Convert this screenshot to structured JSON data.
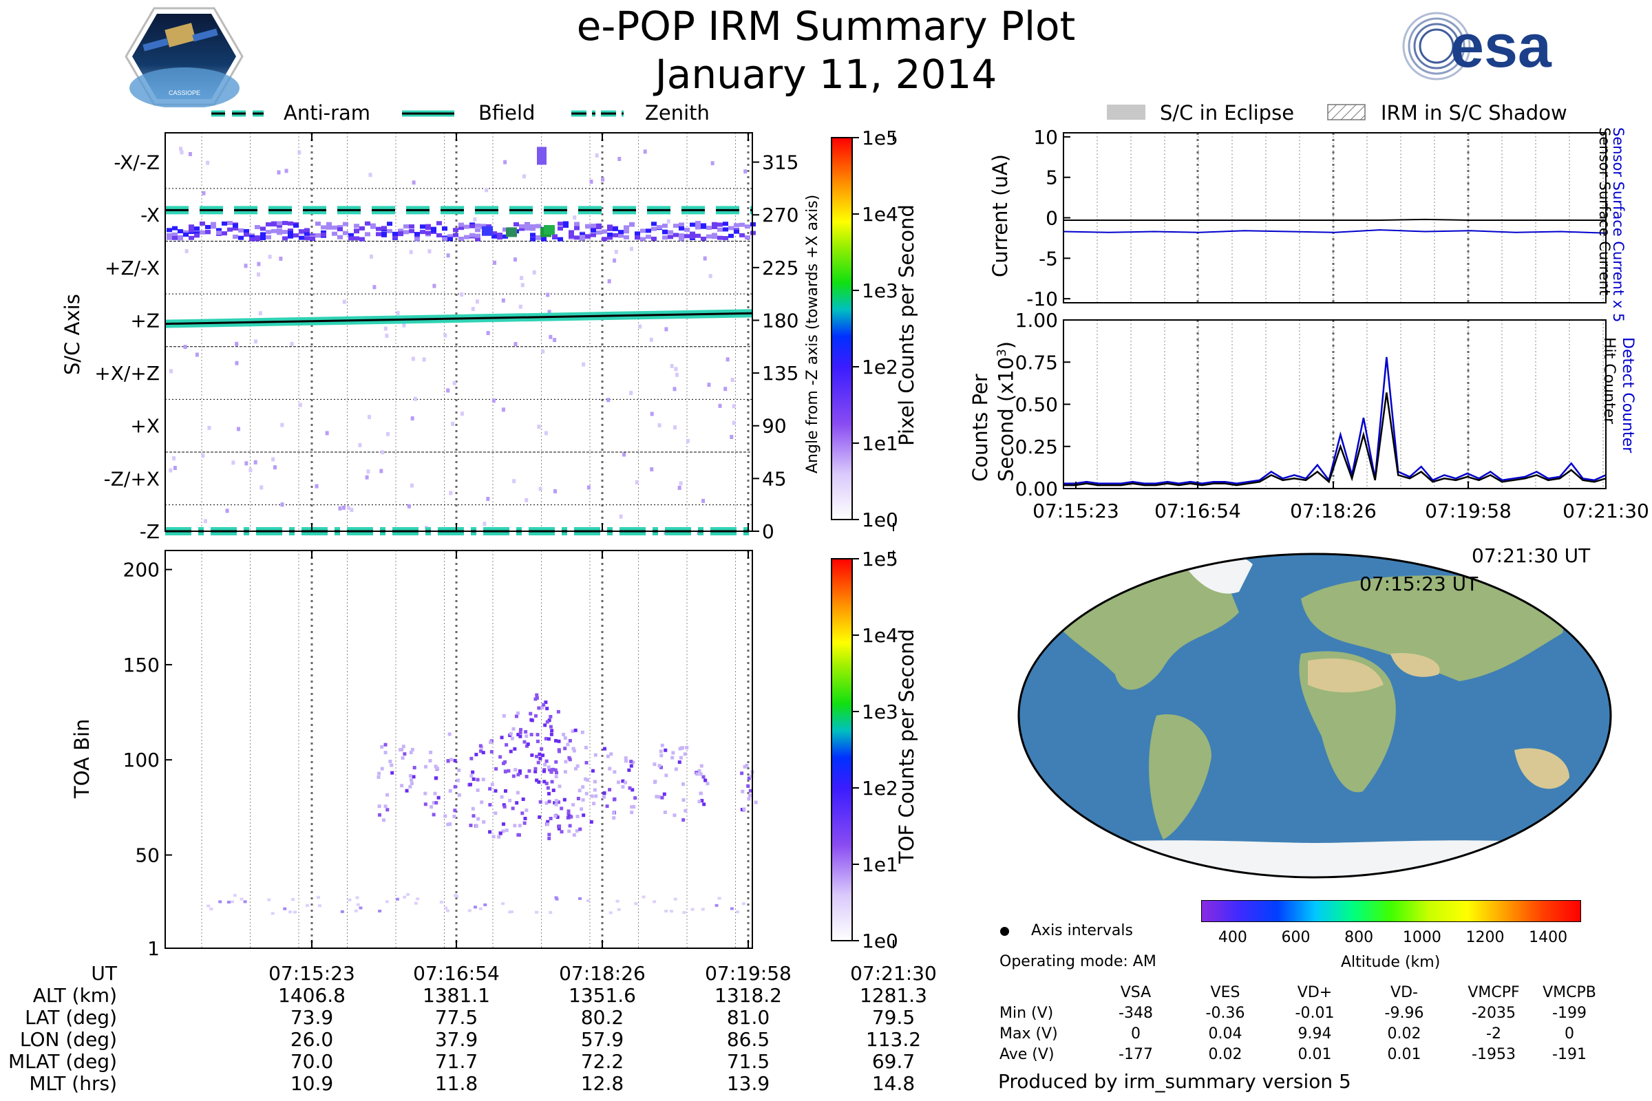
{
  "header": {
    "title": "e-POP IRM Summary Plot",
    "subtitle": "January 11, 2014",
    "badge_text": "CASSIOPE",
    "esa_logo_text": "esa"
  },
  "legend_left": {
    "items": [
      {
        "label": "Anti-ram",
        "style": "dashed"
      },
      {
        "label": "Bfield",
        "style": "solid"
      },
      {
        "label": "Zenith",
        "style": "dashdot"
      }
    ]
  },
  "legend_right": {
    "items": [
      {
        "label": "S/C in Eclipse",
        "style": "gray-fill"
      },
      {
        "label": "IRM in S/C Shadow",
        "style": "hatch"
      }
    ]
  },
  "colors": {
    "accent_teal": "#2fd3b5",
    "sensor_blue": "#0000cc",
    "track_orange": "#f08a1c",
    "ocean": "#3f7fb5"
  },
  "chart_data": [
    {
      "type": "heatmap",
      "name_ref": "sc-axis-panel",
      "ylabel": "S/C Axis",
      "ylabel_right": "Angle from -Z axis (towards +X axis)",
      "y_axis_labels": [
        "-X/-Z",
        "-X",
        "+Z/-X",
        "+Z",
        "+X/+Z",
        "+X",
        "-Z/+X",
        "-Z"
      ],
      "y_right_ticks": [
        "315",
        "270",
        "225",
        "180",
        "135",
        "90",
        "45",
        "0"
      ],
      "ylim": [
        0,
        340
      ],
      "colorbar": {
        "label": "Pixel Counts per Second",
        "ticks": [
          "1e5",
          "1e4",
          "1e3",
          "1e2",
          "1e1",
          "1e0"
        ]
      },
      "lines": [
        {
          "name": "Anti-ram",
          "y_start": 274,
          "y_end": 274
        },
        {
          "name": "Bfield",
          "y_start": 177,
          "y_end": 186
        },
        {
          "name": "Zenith",
          "y_start": 0,
          "y_end": 0
        }
      ]
    },
    {
      "type": "heatmap",
      "name_ref": "toa-panel",
      "ylabel": "TOA Bin",
      "y_ticks": [
        "200",
        "150",
        "100",
        "50",
        "1"
      ],
      "ylim": [
        1,
        210
      ],
      "colorbar": {
        "label": "TOF Counts per Second",
        "ticks": [
          "1e5",
          "1e4",
          "1e3",
          "1e2",
          "1e1",
          "1e0"
        ]
      },
      "x_tick_labels": [
        "07:15:23",
        "07:16:54",
        "07:18:26",
        "07:19:58",
        "07:21:30"
      ]
    },
    {
      "type": "line",
      "name_ref": "current-panel",
      "ylabel": "Current (uA)",
      "y_ticks": [
        "10",
        "5",
        "0",
        "-5",
        "-10"
      ],
      "ylim": [
        -10.5,
        10.5
      ],
      "right_labels": [
        "Sensor Surface Current x 5",
        "Sensor Surface Current"
      ],
      "series": [
        {
          "name": "Sensor Surface Current",
          "color": "#000000",
          "values": [
            -0.3,
            -0.3,
            -0.3,
            -0.3,
            -0.3,
            -0.3,
            -0.3,
            -0.3,
            -0.2,
            -0.3,
            -0.3,
            -0.3,
            -0.3
          ]
        },
        {
          "name": "Sensor Surface Current x 5",
          "color": "#0000cc",
          "values": [
            -1.7,
            -1.8,
            -1.7,
            -1.8,
            -1.6,
            -1.7,
            -1.8,
            -1.5,
            -1.7,
            -1.6,
            -1.8,
            -1.7,
            -1.9
          ]
        }
      ]
    },
    {
      "type": "line",
      "name_ref": "counts-panel",
      "ylabel": "Counts Per Second (x10³)",
      "y_ticks": [
        "1.00",
        "0.75",
        "0.50",
        "0.25",
        "0.00"
      ],
      "ylim": [
        0,
        1.0
      ],
      "right_labels": [
        "Detect Counter",
        "Hit Counter"
      ],
      "x_tick_labels": [
        "07:15:23",
        "07:16:54",
        "07:18:26",
        "07:19:58",
        "07:21:30"
      ],
      "series": [
        {
          "name": "Detect Counter",
          "color": "#0000cc",
          "values": [
            0.03,
            0.03,
            0.04,
            0.03,
            0.03,
            0.03,
            0.04,
            0.03,
            0.03,
            0.04,
            0.03,
            0.04,
            0.03,
            0.04,
            0.04,
            0.03,
            0.04,
            0.05,
            0.1,
            0.06,
            0.08,
            0.06,
            0.14,
            0.05,
            0.32,
            0.08,
            0.42,
            0.06,
            0.78,
            0.1,
            0.07,
            0.13,
            0.05,
            0.08,
            0.06,
            0.09,
            0.06,
            0.1,
            0.05,
            0.06,
            0.07,
            0.1,
            0.06,
            0.07,
            0.15,
            0.06,
            0.05,
            0.08
          ]
        },
        {
          "name": "Hit Counter",
          "color": "#000000",
          "values": [
            0.02,
            0.02,
            0.03,
            0.02,
            0.02,
            0.02,
            0.03,
            0.02,
            0.02,
            0.03,
            0.02,
            0.03,
            0.02,
            0.03,
            0.03,
            0.02,
            0.03,
            0.04,
            0.08,
            0.05,
            0.06,
            0.05,
            0.1,
            0.04,
            0.25,
            0.06,
            0.32,
            0.05,
            0.57,
            0.08,
            0.06,
            0.1,
            0.04,
            0.06,
            0.05,
            0.07,
            0.05,
            0.08,
            0.04,
            0.05,
            0.06,
            0.08,
            0.05,
            0.06,
            0.11,
            0.05,
            0.04,
            0.06
          ]
        }
      ]
    }
  ],
  "map": {
    "start_label": "07:15:23 UT",
    "end_label": "07:21:30 UT",
    "colorbar_ticks": [
      "400",
      "600",
      "800",
      "1000",
      "1200",
      "1400"
    ],
    "colorbar_label": "Altitude (km)",
    "axis_intervals_label": "Axis intervals",
    "operating_mode": "Operating mode: AM"
  },
  "ephemeris": {
    "rows": [
      {
        "label": "UT",
        "values": [
          "07:15:23",
          "07:16:54",
          "07:18:26",
          "07:19:58",
          "07:21:30"
        ]
      },
      {
        "label": "ALT (km)",
        "values": [
          "1406.8",
          "1381.1",
          "1351.6",
          "1318.2",
          "1281.3"
        ]
      },
      {
        "label": "LAT (deg)",
        "values": [
          "73.9",
          "77.5",
          "80.2",
          "81.0",
          "79.5"
        ]
      },
      {
        "label": "LON (deg)",
        "values": [
          "26.0",
          "37.9",
          "57.9",
          "86.5",
          "113.2"
        ]
      },
      {
        "label": "MLAT (deg)",
        "values": [
          "70.0",
          "71.7",
          "72.2",
          "71.5",
          "69.7"
        ]
      },
      {
        "label": "MLT (hrs)",
        "values": [
          "10.9",
          "11.8",
          "12.8",
          "13.9",
          "14.8"
        ]
      }
    ]
  },
  "voltage_table": {
    "columns": [
      "VSA",
      "VES",
      "VD+",
      "VD-",
      "VMCPF",
      "VMCPB"
    ],
    "rows": [
      {
        "label": "Min (V)",
        "values": [
          "-348",
          "-0.36",
          "-0.01",
          "-9.96",
          "-2035",
          "-199"
        ]
      },
      {
        "label": "Max (V)",
        "values": [
          "0",
          "0.04",
          "9.94",
          "0.02",
          "-2",
          "0"
        ]
      },
      {
        "label": "Ave (V)",
        "values": [
          "-177",
          "0.02",
          "0.01",
          "0.01",
          "-1953",
          "-191"
        ]
      }
    ]
  },
  "footer": {
    "produced_by": "Produced by irm_summary version 5"
  }
}
